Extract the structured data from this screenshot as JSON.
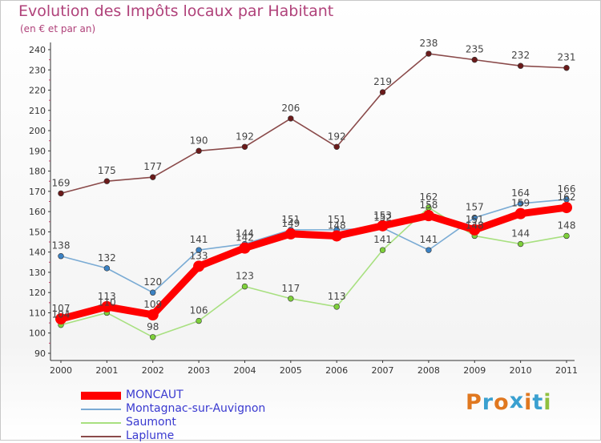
{
  "header": {
    "title": "Evolution des Impôts locaux par Habitant",
    "subtitle": "(en € et par an)"
  },
  "logo": {
    "letters": [
      "P",
      "r",
      "o",
      "x",
      "i",
      "t",
      "i"
    ],
    "colors": [
      "#e07820",
      "#3aa0d0",
      "#e07820",
      "#3aa0d0",
      "#e07820",
      "#3aa0d0",
      "#90c040"
    ]
  },
  "chart_data": {
    "type": "line",
    "title": "Evolution des Impôts locaux par Habitant",
    "subtitle": "(en € et par an)",
    "x": [
      "2000",
      "2001",
      "2002",
      "2003",
      "2004",
      "2005",
      "2006",
      "2007",
      "2008",
      "2009",
      "2010",
      "2011"
    ],
    "ylim": [
      90,
      240
    ],
    "yticks": [
      90,
      100,
      110,
      120,
      130,
      140,
      150,
      160,
      170,
      180,
      190,
      200,
      210,
      220,
      230,
      240
    ],
    "grid": false,
    "legend_position": "bottom-left",
    "series": [
      {
        "name": "MONCAUT",
        "color": "#ff0000",
        "marker": "#ff0000",
        "thick": true,
        "values": [
          107,
          113,
          109,
          133,
          142,
          149,
          148,
          153,
          158,
          151,
          159,
          162
        ]
      },
      {
        "name": "Montagnac-sur-Auvignon",
        "color": "#7aabd4",
        "marker": "#3b82c4",
        "thick": false,
        "values": [
          138,
          132,
          120,
          141,
          144,
          151,
          151,
          152,
          141,
          157,
          164,
          166
        ]
      },
      {
        "name": "Saumont",
        "color": "#a8e080",
        "marker": "#7ed03a",
        "thick": false,
        "values": [
          104,
          110,
          98,
          106,
          123,
          117,
          113,
          141,
          162,
          148,
          144,
          148
        ]
      },
      {
        "name": "Laplume",
        "color": "#8a4a4a",
        "marker": "#6b1a1a",
        "thick": false,
        "values": [
          169,
          175,
          177,
          190,
          192,
          206,
          192,
          219,
          238,
          235,
          232,
          231
        ]
      }
    ]
  }
}
